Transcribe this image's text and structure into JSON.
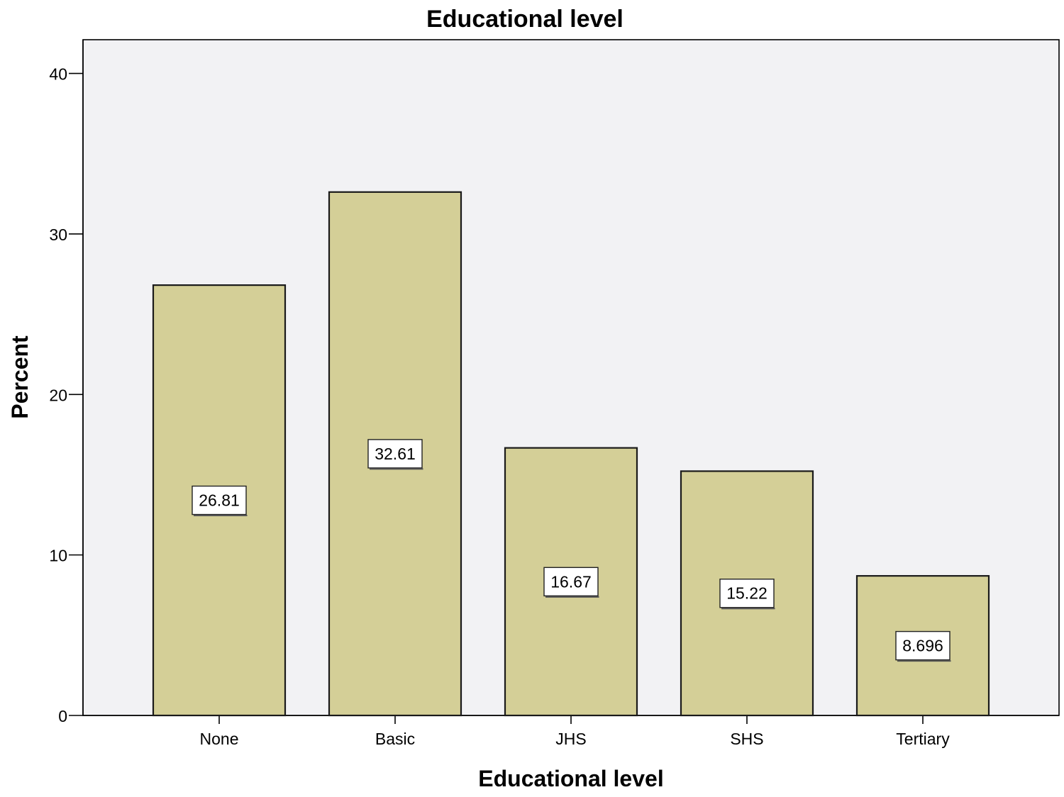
{
  "chart_data": {
    "type": "bar",
    "title": "Educational level",
    "xlabel": "Educational level",
    "ylabel": "Percent",
    "categories": [
      "None",
      "Basic",
      "JHS",
      "SHS",
      "Tertiary"
    ],
    "values": [
      26.81,
      32.61,
      16.67,
      15.22,
      8.696
    ],
    "data_labels": [
      "26.81",
      "32.61",
      "16.67",
      "15.22",
      "8.696"
    ],
    "yticks": [
      "0",
      "10",
      "20",
      "30",
      "40"
    ],
    "ylim": [
      0,
      42.1
    ],
    "grid": false,
    "legend": "none",
    "colors": {
      "bar_fill": "#d4cf97",
      "bar_stroke": "#1a1a1a",
      "plot_background": "#f2f2f4",
      "label_box": "#ffffff"
    }
  }
}
